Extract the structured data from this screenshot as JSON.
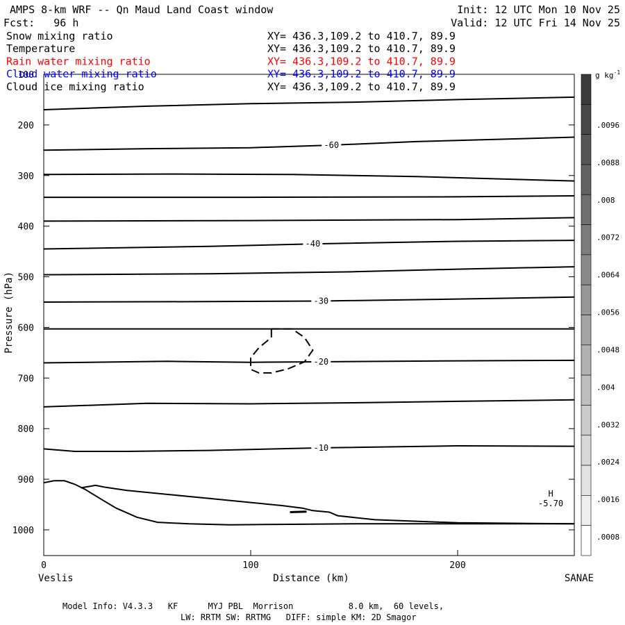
{
  "header": {
    "title": "AMPS 8-km WRF -- Qn Maud Land Coast window",
    "init": "Init: 12 UTC Mon 10 Nov 25",
    "fcst": "Fcst:   96 h",
    "valid": "Valid: 12 UTC Fri 14 Nov 25"
  },
  "fields": [
    {
      "name": "Snow mixing ratio",
      "xy": "XY= 436.3,109.2 to 410.7, 89.9",
      "color": "#000000"
    },
    {
      "name": "Temperature",
      "xy": "XY= 436.3,109.2 to 410.7, 89.9",
      "color": "#000000"
    },
    {
      "name": "Rain water mixing ratio",
      "xy": "XY= 436.3,109.2 to 410.7, 89.9",
      "color": "#ff0000"
    },
    {
      "name": "Cloud water mixing ratio",
      "xy": "XY= 436.3,109.2 to 410.7, 89.9",
      "color": "#0000ff"
    },
    {
      "name": "Cloud ice mixing ratio",
      "xy": "XY= 436.3,109.2 to 410.7, 89.9",
      "color": "#000000"
    }
  ],
  "footer": {
    "line1": "Model Info: V4.3.3   KF      MYJ PBL  Morrison           8.0 km,  60 levels,",
    "line2": "LW: RRTM SW: RRTMG   DIFF: simple KM: 2D Smagor"
  },
  "chart_data": {
    "type": "cross-section",
    "xlabel": "Distance (km)",
    "ylabel": "Pressure (hPa)",
    "xlim": [
      0,
      258
    ],
    "ylim": [
      100,
      1050
    ],
    "x_ticks": [
      0,
      100,
      200
    ],
    "y_ticks": [
      100,
      200,
      300,
      400,
      500,
      600,
      700,
      800,
      900,
      1000
    ],
    "left_endpoint": "Veslis",
    "right_endpoint": "SANAE",
    "high_label": "H",
    "high_value": "-5.70",
    "high_position": [
      245,
      945
    ],
    "colorbar": {
      "unit": "g kg",
      "unit_exp": "-1",
      "labels": [
        ".0096",
        ".0088",
        ".008",
        ".0072",
        ".0064",
        ".0056",
        ".0048",
        ".004",
        ".0032",
        ".0024",
        ".0016",
        ".0008"
      ],
      "colors": [
        "#3a3a3a",
        "#484848",
        "#555555",
        "#626262",
        "#6f6f6f",
        "#7c7c7c",
        "#8a8a8a",
        "#979797",
        "#a4a4a4",
        "#b1b1b1",
        "#bebebe",
        "#cbcbcb",
        "#d8d8d8",
        "#e3e3e3",
        "#eeeeee",
        "#ffffff"
      ]
    },
    "isotherms": [
      {
        "label": "",
        "points": [
          [
            0,
            170
          ],
          [
            50,
            163
          ],
          [
            100,
            158
          ],
          [
            150,
            155
          ],
          [
            200,
            150
          ],
          [
            258,
            145
          ]
        ]
      },
      {
        "label": "-60",
        "label_at": [
          139,
          240
        ],
        "points": [
          [
            0,
            250
          ],
          [
            50,
            247
          ],
          [
            100,
            245
          ],
          [
            139,
            240
          ],
          [
            180,
            233
          ],
          [
            258,
            224
          ]
        ]
      },
      {
        "label": "",
        "points": [
          [
            0,
            298
          ],
          [
            60,
            297
          ],
          [
            120,
            298
          ],
          [
            180,
            302
          ],
          [
            258,
            311
          ]
        ]
      },
      {
        "label": "",
        "points": [
          [
            0,
            343
          ],
          [
            100,
            343
          ],
          [
            200,
            342
          ],
          [
            258,
            340
          ]
        ]
      },
      {
        "label": "",
        "points": [
          [
            0,
            390
          ],
          [
            100,
            389
          ],
          [
            200,
            387
          ],
          [
            258,
            383
          ]
        ]
      },
      {
        "label": "-40",
        "label_at": [
          130,
          435
        ],
        "points": [
          [
            0,
            445
          ],
          [
            80,
            440
          ],
          [
            130,
            435
          ],
          [
            200,
            430
          ],
          [
            258,
            428
          ]
        ]
      },
      {
        "label": "",
        "points": [
          [
            0,
            496
          ],
          [
            80,
            494
          ],
          [
            150,
            490
          ],
          [
            200,
            485
          ],
          [
            258,
            480
          ]
        ]
      },
      {
        "label": "-30",
        "label_at": [
          134,
          548
        ],
        "points": [
          [
            0,
            550
          ],
          [
            80,
            549
          ],
          [
            134,
            548
          ],
          [
            200,
            544
          ],
          [
            258,
            540
          ]
        ]
      },
      {
        "label": "",
        "points": [
          [
            0,
            603
          ],
          [
            100,
            603
          ],
          [
            200,
            603
          ],
          [
            258,
            603
          ]
        ]
      },
      {
        "label": "-20",
        "label_at": [
          134,
          668
        ],
        "points": [
          [
            0,
            670
          ],
          [
            60,
            667
          ],
          [
            100,
            669
          ],
          [
            134,
            668
          ],
          [
            200,
            666
          ],
          [
            258,
            665
          ]
        ]
      },
      {
        "label": "",
        "points": [
          [
            0,
            757
          ],
          [
            50,
            750
          ],
          [
            100,
            751
          ],
          [
            150,
            749
          ],
          [
            200,
            746
          ],
          [
            258,
            743
          ]
        ]
      },
      {
        "label": "-10",
        "label_at": [
          134,
          838
        ],
        "points": [
          [
            0,
            840
          ],
          [
            15,
            845
          ],
          [
            40,
            845
          ],
          [
            80,
            843
          ],
          [
            134,
            838
          ],
          [
            200,
            834
          ],
          [
            258,
            835
          ]
        ]
      }
    ],
    "dashed_contour": {
      "points": [
        [
          110,
          603
        ],
        [
          120,
          603
        ],
        [
          126,
          620
        ],
        [
          130,
          645
        ],
        [
          126,
          668
        ],
        [
          118,
          682
        ],
        [
          110,
          690
        ],
        [
          104,
          690
        ],
        [
          100,
          683
        ],
        [
          100,
          660
        ],
        [
          104,
          640
        ],
        [
          110,
          620
        ],
        [
          110,
          603
        ]
      ]
    },
    "terrain": [
      {
        "points": [
          [
            0,
            907
          ],
          [
            5,
            903
          ],
          [
            10,
            903
          ],
          [
            15,
            910
          ],
          [
            20,
            920
          ],
          [
            28,
            940
          ],
          [
            35,
            957
          ],
          [
            45,
            975
          ],
          [
            55,
            985
          ],
          [
            70,
            988
          ],
          [
            90,
            990
          ],
          [
            120,
            989
          ],
          [
            150,
            988
          ],
          [
            200,
            988
          ],
          [
            258,
            988
          ]
        ]
      },
      {
        "points": [
          [
            18,
            917
          ],
          [
            25,
            912
          ],
          [
            30,
            916
          ],
          [
            40,
            922
          ],
          [
            60,
            930
          ],
          [
            80,
            938
          ],
          [
            100,
            946
          ],
          [
            115,
            952
          ],
          [
            125,
            957
          ],
          [
            130,
            962
          ],
          [
            138,
            965
          ],
          [
            142,
            972
          ],
          [
            160,
            980
          ],
          [
            200,
            986
          ],
          [
            258,
            988
          ]
        ]
      }
    ]
  }
}
